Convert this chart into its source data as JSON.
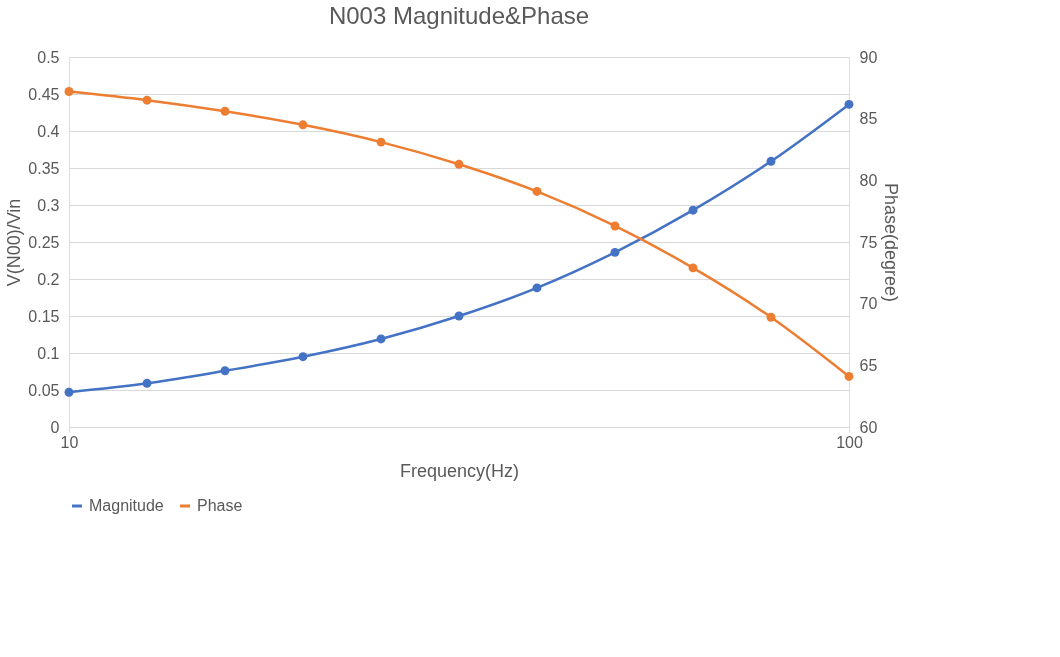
{
  "chart_data": {
    "type": "line",
    "title": "N003 Magnitude&Phase",
    "xlabel": "Frequency(Hz)",
    "ylabel": "V(N00)/Vin",
    "y2label": "Phase(degree)",
    "x": [
      10,
      12.59,
      15.85,
      19.95,
      25.12,
      31.62,
      39.81,
      50.12,
      63.1,
      79.43,
      100
    ],
    "series": [
      {
        "name": "Magnitude",
        "color": "#4472c4",
        "values": [
          0.047,
          0.059,
          0.076,
          0.095,
          0.119,
          0.15,
          0.188,
          0.236,
          0.293,
          0.359,
          0.436
        ]
      },
      {
        "name": "Phase",
        "color": "#ed7d31",
        "axis": "y2",
        "values": [
          87.2,
          86.5,
          85.6,
          84.5,
          83.1,
          81.3,
          79.1,
          76.3,
          72.9,
          68.9,
          64.1
        ]
      }
    ],
    "log": "x",
    "xlim": [
      10,
      100
    ],
    "xticks": [
      10,
      100
    ],
    "ylim": [
      0,
      0.5
    ],
    "yticks": [
      0,
      0.05,
      0.1,
      0.15,
      0.2,
      0.25,
      0.3,
      0.35,
      0.4,
      0.45,
      0.5
    ],
    "y2lim": [
      60,
      90
    ],
    "y2ticks": [
      60,
      65,
      70,
      75,
      80,
      85,
      90
    ],
    "grid": "y",
    "legend": "bottom",
    "marker": "circle",
    "line_style": "solid"
  }
}
